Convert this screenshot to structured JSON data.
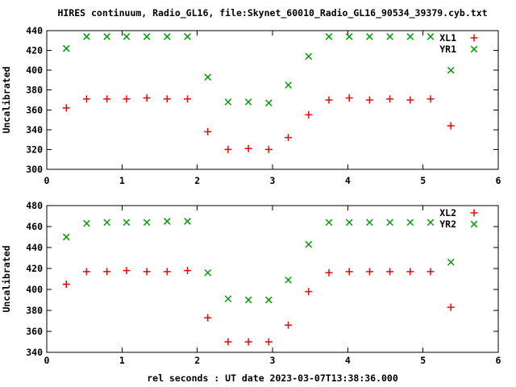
{
  "title": "HIRES continuum, Radio_GL16, file:Skynet_60010_Radio_GL16_90534_39379.cyb.txt",
  "xlabel": "rel seconds : UT date 2023-03-07T13:38:36.000",
  "colors": {
    "marker_red": "#ff0000",
    "marker_green": "#00a000",
    "frame": "#000000",
    "background": "#ffffff"
  },
  "chart_data": [
    {
      "type": "scatter",
      "title": "",
      "ylabel": "Uncalibrated",
      "xlim": [
        0,
        6
      ],
      "ylim": [
        300,
        440
      ],
      "xticks": [
        0,
        1,
        2,
        3,
        4,
        5,
        6
      ],
      "yticks": [
        300,
        320,
        340,
        360,
        380,
        400,
        420,
        440
      ],
      "grid": false,
      "legend_position": "top-right-inside",
      "x": [
        0.26,
        0.53,
        0.8,
        1.06,
        1.33,
        1.6,
        1.87,
        2.14,
        2.41,
        2.68,
        2.95,
        3.21,
        3.48,
        3.75,
        4.02,
        4.29,
        4.56,
        4.83,
        5.1,
        5.37
      ],
      "series": [
        {
          "name": "XL1",
          "marker": "plus",
          "color": "#ff0000",
          "values": [
            362,
            371,
            371,
            371,
            372,
            371,
            371,
            338,
            320,
            321,
            320,
            332,
            355,
            370,
            372,
            370,
            371,
            370,
            371,
            344
          ]
        },
        {
          "name": "YR1",
          "marker": "cross",
          "color": "#00a000",
          "values": [
            422,
            434,
            434,
            434,
            434,
            434,
            434,
            393,
            368,
            368,
            367,
            385,
            414,
            434,
            434,
            434,
            434,
            434,
            434,
            400
          ]
        }
      ]
    },
    {
      "type": "scatter",
      "title": "",
      "ylabel": "Uncalibrated",
      "xlim": [
        0,
        6
      ],
      "ylim": [
        340,
        480
      ],
      "xticks": [
        0,
        1,
        2,
        3,
        4,
        5,
        6
      ],
      "yticks": [
        340,
        360,
        380,
        400,
        420,
        440,
        460,
        480
      ],
      "grid": false,
      "legend_position": "top-right-inside",
      "x": [
        0.26,
        0.53,
        0.8,
        1.06,
        1.33,
        1.6,
        1.87,
        2.14,
        2.41,
        2.68,
        2.95,
        3.21,
        3.48,
        3.75,
        4.02,
        4.29,
        4.56,
        4.83,
        5.1,
        5.37
      ],
      "series": [
        {
          "name": "XL2",
          "marker": "plus",
          "color": "#ff0000",
          "values": [
            405,
            417,
            417,
            418,
            417,
            417,
            418,
            373,
            350,
            350,
            350,
            366,
            398,
            416,
            417,
            417,
            417,
            417,
            417,
            383
          ]
        },
        {
          "name": "YR2",
          "marker": "cross",
          "color": "#00a000",
          "values": [
            450,
            463,
            464,
            464,
            464,
            465,
            465,
            416,
            391,
            390,
            390,
            409,
            443,
            464,
            464,
            464,
            464,
            464,
            464,
            426
          ]
        }
      ]
    }
  ]
}
